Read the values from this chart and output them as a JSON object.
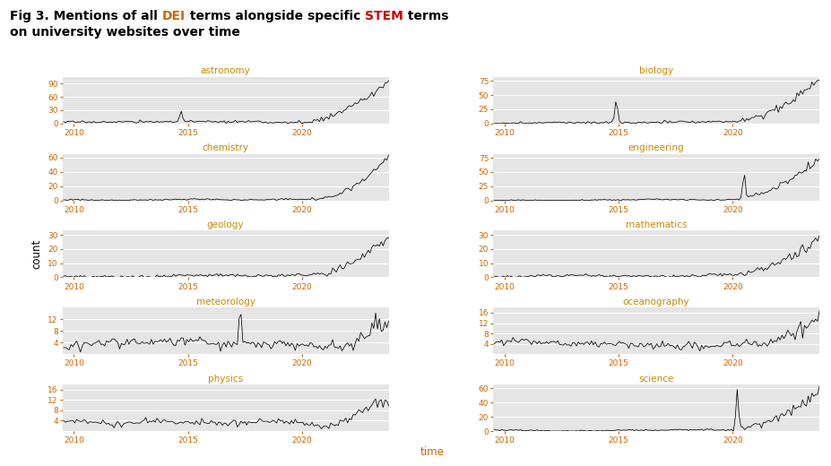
{
  "title_parts_line1": [
    [
      "Fig 3. Mentions of all ",
      "black"
    ],
    [
      "DEI",
      "#cc6600"
    ],
    [
      " terms alongside specific ",
      "black"
    ],
    [
      "STEM",
      "#cc0000"
    ],
    [
      " terms",
      "black"
    ]
  ],
  "title_line2": "on university websites over time",
  "subplot_titles": [
    "astronomy",
    "biology",
    "chemistry",
    "engineering",
    "geology",
    "mathematics",
    "meteorology",
    "oceanography",
    "physics",
    "science"
  ],
  "subplot_title_color": "#cc8800",
  "xlabel": "time",
  "xlabel_color": "#cc6600",
  "ylabel": "count",
  "panel_bg": "#e5e5e5",
  "line_color": "#000000",
  "tick_color_x": "#cc6600",
  "tick_color_y": "#cc6600",
  "ylims": {
    "astronomy": [
      0,
      105
    ],
    "biology": [
      0,
      82
    ],
    "chemistry": [
      0,
      65
    ],
    "engineering": [
      0,
      82
    ],
    "geology": [
      0,
      33
    ],
    "mathematics": [
      0,
      33
    ],
    "meteorology": [
      0,
      16
    ],
    "oceanography": [
      0,
      18
    ],
    "physics": [
      0,
      18
    ],
    "science": [
      0,
      65
    ]
  },
  "yticks": {
    "astronomy": [
      0,
      30,
      60,
      90
    ],
    "biology": [
      0,
      25,
      50,
      75
    ],
    "chemistry": [
      0,
      20,
      40,
      60
    ],
    "engineering": [
      0,
      25,
      50,
      75
    ],
    "geology": [
      0,
      10,
      20,
      30
    ],
    "mathematics": [
      0,
      10,
      20,
      30
    ],
    "meteorology": [
      4,
      8,
      12
    ],
    "oceanography": [
      4,
      8,
      12,
      16
    ],
    "physics": [
      4,
      8,
      12,
      16
    ],
    "science": [
      0,
      20,
      40,
      60
    ]
  },
  "xlim": [
    2009.5,
    2023.8
  ],
  "xticks": [
    2010,
    2015,
    2020
  ],
  "seed": 17,
  "n_months": 175
}
